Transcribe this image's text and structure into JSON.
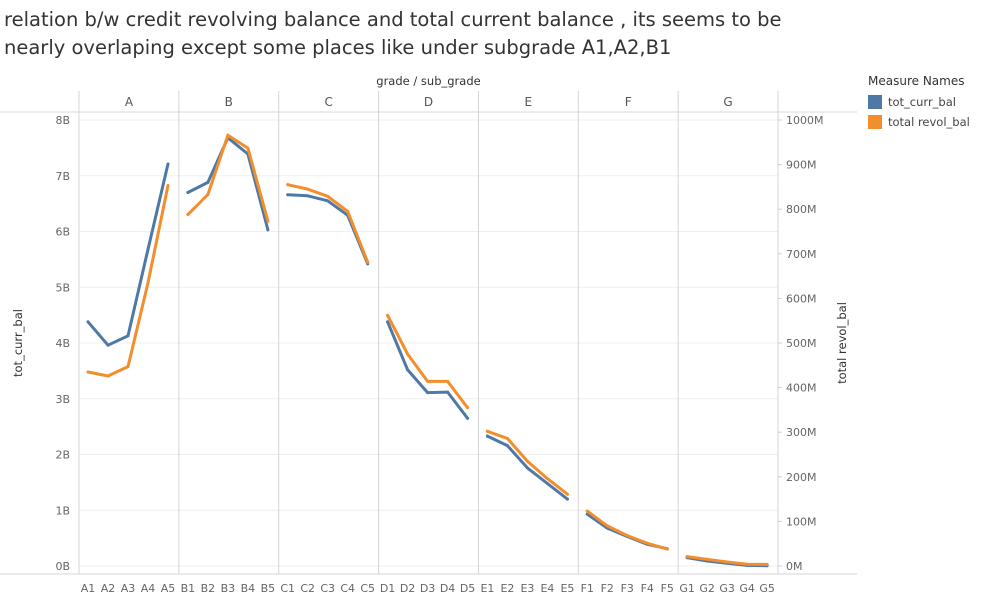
{
  "title": "relation b/w credit revolving balance and total current balance , its seems to be nearly overlaping except some places like under subgrade A1,A2,B1",
  "legend": {
    "title": "Measure Names",
    "items": [
      {
        "label": "tot_curr_bal",
        "color": "#4e79a7"
      },
      {
        "label": "total revol_bal",
        "color": "#f28e2b"
      }
    ]
  },
  "chart_data": {
    "type": "line",
    "column_header": "grade / sub_grade",
    "groups": [
      "A",
      "B",
      "C",
      "D",
      "E",
      "F",
      "G"
    ],
    "categories": [
      [
        "A1",
        "A2",
        "A3",
        "A4",
        "A5"
      ],
      [
        "B1",
        "B2",
        "B3",
        "B4",
        "B5"
      ],
      [
        "C1",
        "C2",
        "C3",
        "C4",
        "C5"
      ],
      [
        "D1",
        "D2",
        "D3",
        "D4",
        "D5"
      ],
      [
        "E1",
        "E2",
        "E3",
        "E4",
        "E5"
      ],
      [
        "F1",
        "F2",
        "F3",
        "F4",
        "F5"
      ],
      [
        "G1",
        "G2",
        "G3",
        "G4",
        "G5"
      ]
    ],
    "y_left": {
      "label": "tot_curr_bal",
      "range": [
        0,
        8000000000
      ],
      "ticks": [
        0,
        1000000000,
        2000000000,
        3000000000,
        4000000000,
        5000000000,
        6000000000,
        7000000000,
        8000000000
      ],
      "tick_labels": [
        "0B",
        "1B",
        "2B",
        "3B",
        "4B",
        "5B",
        "6B",
        "7B",
        "8B"
      ]
    },
    "y_right": {
      "label": "total revol_bal",
      "range": [
        0,
        1000000000
      ],
      "ticks": [
        0,
        100000000,
        200000000,
        300000000,
        400000000,
        500000000,
        600000000,
        700000000,
        800000000,
        900000000,
        1000000000
      ],
      "tick_labels": [
        "0M",
        "100M",
        "200M",
        "300M",
        "400M",
        "500M",
        "600M",
        "700M",
        "800M",
        "900M",
        "1000M"
      ]
    },
    "series": [
      {
        "name": "tot_curr_bal",
        "axis": "left",
        "color": "#4e79a7",
        "values": [
          [
            4380000000.0,
            3960000000.0,
            4130000000.0,
            5680000000.0,
            7210000000.0
          ],
          [
            6700000000.0,
            6880000000.0,
            7680000000.0,
            7390000000.0,
            6030000000.0
          ],
          [
            6660000000.0,
            6640000000.0,
            6550000000.0,
            6290000000.0,
            5420000000.0
          ],
          [
            4380000000.0,
            3520000000.0,
            3110000000.0,
            3120000000.0,
            2650000000.0
          ],
          [
            2330000000.0,
            2160000000.0,
            1760000000.0,
            1480000000.0,
            1200000000.0
          ],
          [
            930000000.0,
            680000000.0,
            530000000.0,
            390000000.0,
            310000000.0
          ],
          [
            150000000.0,
            90000000.0,
            50000000.0,
            10000000.0,
            5000000.0
          ]
        ]
      },
      {
        "name": "total revol_bal",
        "axis": "right",
        "color": "#f28e2b",
        "values": [
          [
            435000000.0,
            426000000.0,
            447000000.0,
            635000000.0,
            853000000.0
          ],
          [
            788000000.0,
            833000000.0,
            966000000.0,
            937000000.0,
            773000000.0
          ],
          [
            855000000.0,
            845000000.0,
            829000000.0,
            795000000.0,
            681000000.0
          ],
          [
            562000000.0,
            475000000.0,
            414000000.0,
            414000000.0,
            355000000.0
          ],
          [
            302000000.0,
            286000000.0,
            235000000.0,
            196000000.0,
            161000000.0
          ],
          [
            123000000.0,
            90000000.0,
            68000000.0,
            51000000.0,
            38000000.0
          ],
          [
            21000000.0,
            15000000.0,
            9000000.0,
            4000000.0,
            3500000.0
          ]
        ]
      }
    ],
    "grid": true
  }
}
